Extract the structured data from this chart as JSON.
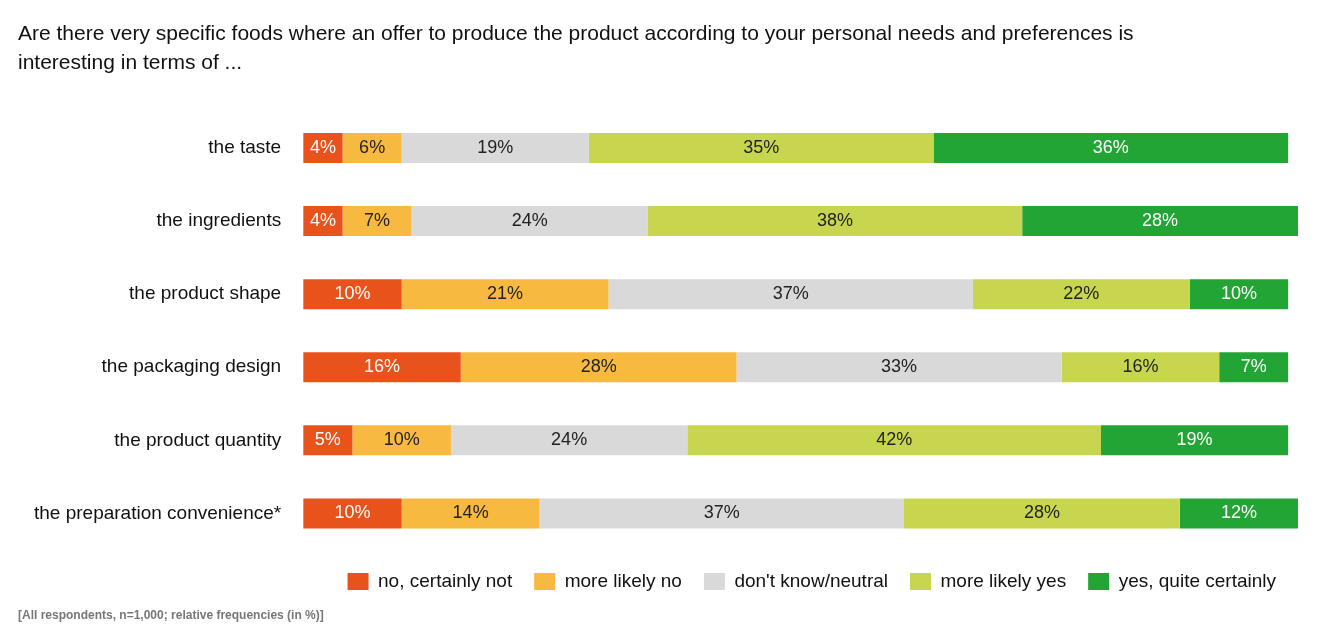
{
  "chart_data": {
    "type": "bar",
    "orientation": "horizontal",
    "stacked": true,
    "title": "Are there very specific foods where an offer to produce the product according to your personal needs and preferences is interesting in terms of ...",
    "categories": [
      "the taste",
      "the ingredients",
      "the product shape",
      "the packaging design",
      "the product quantity",
      "the preparation convenience*"
    ],
    "series": [
      {
        "name": "no, certainly not",
        "color": "#e8531c",
        "values": [
          4,
          4,
          10,
          16,
          5,
          10
        ],
        "value_labels": [
          "4%",
          "4%",
          "10%",
          "16%",
          "5%",
          "10%"
        ]
      },
      {
        "name": "more likely no",
        "color": "#f8b941",
        "values": [
          6,
          7,
          21,
          28,
          10,
          14
        ],
        "value_labels": [
          "6%",
          "7%",
          "21%",
          "28%",
          "10%",
          "14%"
        ]
      },
      {
        "name": "don't know/neutral",
        "color": "#d9d9d9",
        "values": [
          19,
          24,
          37,
          33,
          24,
          37
        ],
        "value_labels": [
          "19%",
          "24%",
          "37%",
          "33%",
          "24%",
          "37%"
        ]
      },
      {
        "name": "more likely yes",
        "color": "#c8d64f",
        "values": [
          35,
          38,
          22,
          16,
          42,
          28
        ],
        "value_labels": [
          "35%",
          "38%",
          "22%",
          "16%",
          "42%",
          "28%"
        ]
      },
      {
        "name": "yes, quite certainly",
        "color": "#22a535",
        "values": [
          36,
          28,
          10,
          7,
          19,
          12
        ],
        "value_labels": [
          "36%",
          "28%",
          "10%",
          "7%",
          "19%",
          "12%"
        ]
      }
    ],
    "legend": "bottom",
    "tick_labels": "y",
    "annotations": [
      "[All respondents, n=1,000; relative frequencies (in %)]"
    ]
  }
}
